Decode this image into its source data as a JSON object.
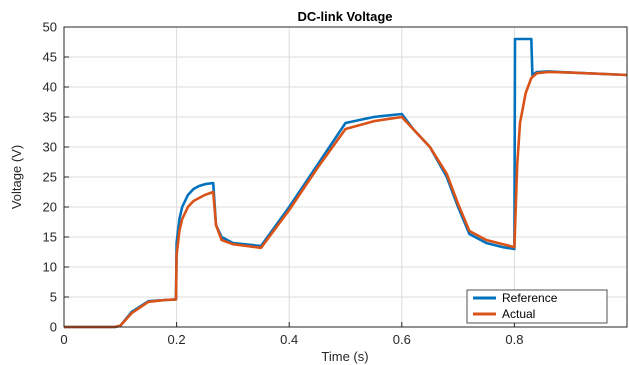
{
  "chart_data": {
    "type": "line",
    "title": "DC-link Voltage",
    "xlabel": "Time (s)",
    "ylabel": "Voltage (V)",
    "xlim": [
      0,
      1
    ],
    "ylim": [
      0,
      50
    ],
    "xticks": [
      0,
      0.2,
      0.4,
      0.6,
      0.8
    ],
    "xtick_labels": [
      "0",
      "0.2",
      "0.4",
      "0.6",
      "0.8"
    ],
    "yticks": [
      0,
      5,
      10,
      15,
      20,
      25,
      30,
      35,
      40,
      45,
      50
    ],
    "ytick_labels": [
      "0",
      "5",
      "10",
      "15",
      "20",
      "25",
      "30",
      "35",
      "40",
      "45",
      "50"
    ],
    "grid": true,
    "legend_position": "bottom-right",
    "series": [
      {
        "name": "Reference",
        "color": "#0072BD",
        "x": [
          0,
          0.09,
          0.1,
          0.12,
          0.15,
          0.18,
          0.199,
          0.2,
          0.205,
          0.21,
          0.22,
          0.23,
          0.24,
          0.25,
          0.265,
          0.27,
          0.28,
          0.3,
          0.35,
          0.4,
          0.45,
          0.5,
          0.55,
          0.6,
          0.62,
          0.65,
          0.68,
          0.7,
          0.72,
          0.75,
          0.78,
          0.8,
          0.801,
          0.82,
          0.83,
          0.832,
          0.84,
          0.86,
          0.9,
          1.0
        ],
        "y": [
          0,
          0,
          0.2,
          2.5,
          4.3,
          4.5,
          4.6,
          14,
          18,
          20,
          22,
          23,
          23.5,
          23.8,
          24,
          17,
          15,
          14,
          13.5,
          20,
          27,
          34,
          35,
          35.5,
          33,
          30,
          25,
          20,
          15.5,
          14,
          13.3,
          13,
          48,
          48,
          48,
          42,
          42.5,
          42.6,
          42.4,
          42
        ]
      },
      {
        "name": "Actual",
        "color": "#D95319",
        "x": [
          0,
          0.09,
          0.1,
          0.12,
          0.15,
          0.18,
          0.199,
          0.2,
          0.205,
          0.21,
          0.22,
          0.23,
          0.24,
          0.25,
          0.265,
          0.27,
          0.28,
          0.3,
          0.35,
          0.4,
          0.45,
          0.5,
          0.55,
          0.6,
          0.62,
          0.65,
          0.68,
          0.7,
          0.72,
          0.75,
          0.78,
          0.8,
          0.805,
          0.81,
          0.82,
          0.83,
          0.84,
          0.86,
          0.9,
          1.0
        ],
        "y": [
          0,
          0,
          0.2,
          2.3,
          4.2,
          4.5,
          4.6,
          12,
          16,
          18,
          20,
          21,
          21.5,
          22,
          22.5,
          17,
          14.5,
          13.8,
          13.2,
          19.5,
          26.5,
          33,
          34.3,
          35,
          33,
          30,
          25.5,
          20.5,
          16,
          14.5,
          13.8,
          13.3,
          27,
          34,
          39,
          41.5,
          42.3,
          42.5,
          42.4,
          42
        ]
      }
    ]
  }
}
